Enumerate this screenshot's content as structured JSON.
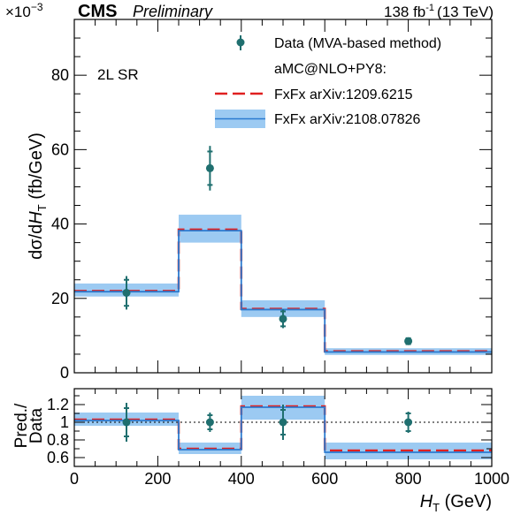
{
  "header": {
    "exponent_text": "×10",
    "exponent_power": "−3",
    "experiment": "CMS",
    "status": "Preliminary",
    "lumi_value": "138 fb",
    "lumi_power": "-1",
    "lumi_energy": "(13 TeV)"
  },
  "annotation": "2L SR",
  "chart_data": [
    {
      "type": "line",
      "panel": "main",
      "ylabel": "dσ/dH_T (fb/GeV)",
      "xlim": [
        0,
        1000
      ],
      "ylim": [
        0,
        95
      ],
      "x_ticks": [
        0,
        200,
        400,
        600,
        800,
        1000
      ],
      "y_ticks": [
        0,
        20,
        40,
        60,
        80
      ],
      "y_tick_labels": [
        "0",
        "20",
        "40",
        "60",
        "80"
      ],
      "bin_edges": [
        0,
        250,
        400,
        600,
        1000
      ],
      "legend": {
        "data_label": "Data (MVA-based method)",
        "mc_header": "aMC@NLO+PY8:",
        "fxfx1_label": "FxFx arXiv:1209.6215",
        "fxfx2_label": "FxFx arXiv:2108.07826"
      },
      "series": [
        {
          "name": "Data (MVA-based method)",
          "kind": "points",
          "x": [
            125,
            325,
            500,
            800
          ],
          "y": [
            21.5,
            55,
            14.5,
            8.5
          ],
          "err_stat": [
            3.5,
            4.5,
            2.0,
            0.8
          ],
          "err_tot": [
            4.5,
            6.0,
            2.5,
            1.0
          ]
        },
        {
          "name": "FxFx arXiv:1209.6215",
          "kind": "step",
          "style": "red-dashed",
          "values": [
            22.0,
            38.5,
            17.2,
            5.8
          ]
        },
        {
          "name": "FxFx arXiv:2108.07826",
          "kind": "step-band",
          "style": "blue",
          "values": [
            21.8,
            38.2,
            17.0,
            5.6
          ],
          "band_low": [
            20.5,
            35.0,
            15.0,
            4.8
          ],
          "band_high": [
            24.0,
            42.5,
            19.5,
            6.6
          ]
        }
      ]
    },
    {
      "type": "line",
      "panel": "ratio",
      "ylabel_line1": "Pred./",
      "ylabel_line2": "Data",
      "xlabel": "H_T (GeV)",
      "xlim": [
        0,
        1000
      ],
      "ylim": [
        0.5,
        1.38
      ],
      "x_ticks": [
        0,
        200,
        400,
        600,
        800,
        1000
      ],
      "x_tick_labels": [
        "0",
        "200",
        "400",
        "600",
        "800",
        "1000"
      ],
      "y_ticks": [
        0.6,
        0.8,
        1,
        1.2
      ],
      "y_tick_labels": [
        "0.6",
        "0.8",
        "1",
        "1.2"
      ],
      "reference_line": 1.0,
      "series": [
        {
          "name": "Data",
          "kind": "points",
          "x": [
            125,
            325,
            500,
            800
          ],
          "y": [
            1.0,
            1.0,
            1.0,
            1.0
          ],
          "err_stat": [
            0.16,
            0.08,
            0.14,
            0.1
          ],
          "err_tot": [
            0.22,
            0.11,
            0.2,
            0.12
          ]
        },
        {
          "name": "FxFx arXiv:1209.6215",
          "kind": "step",
          "style": "red-dashed",
          "values": [
            1.03,
            0.7,
            1.18,
            0.68
          ]
        },
        {
          "name": "FxFx arXiv:2108.07826",
          "kind": "step-band",
          "style": "blue",
          "values": [
            1.02,
            0.69,
            1.17,
            0.66
          ],
          "band_low": [
            0.96,
            0.64,
            1.03,
            0.58
          ],
          "band_high": [
            1.11,
            0.77,
            1.3,
            0.77
          ]
        }
      ]
    }
  ]
}
